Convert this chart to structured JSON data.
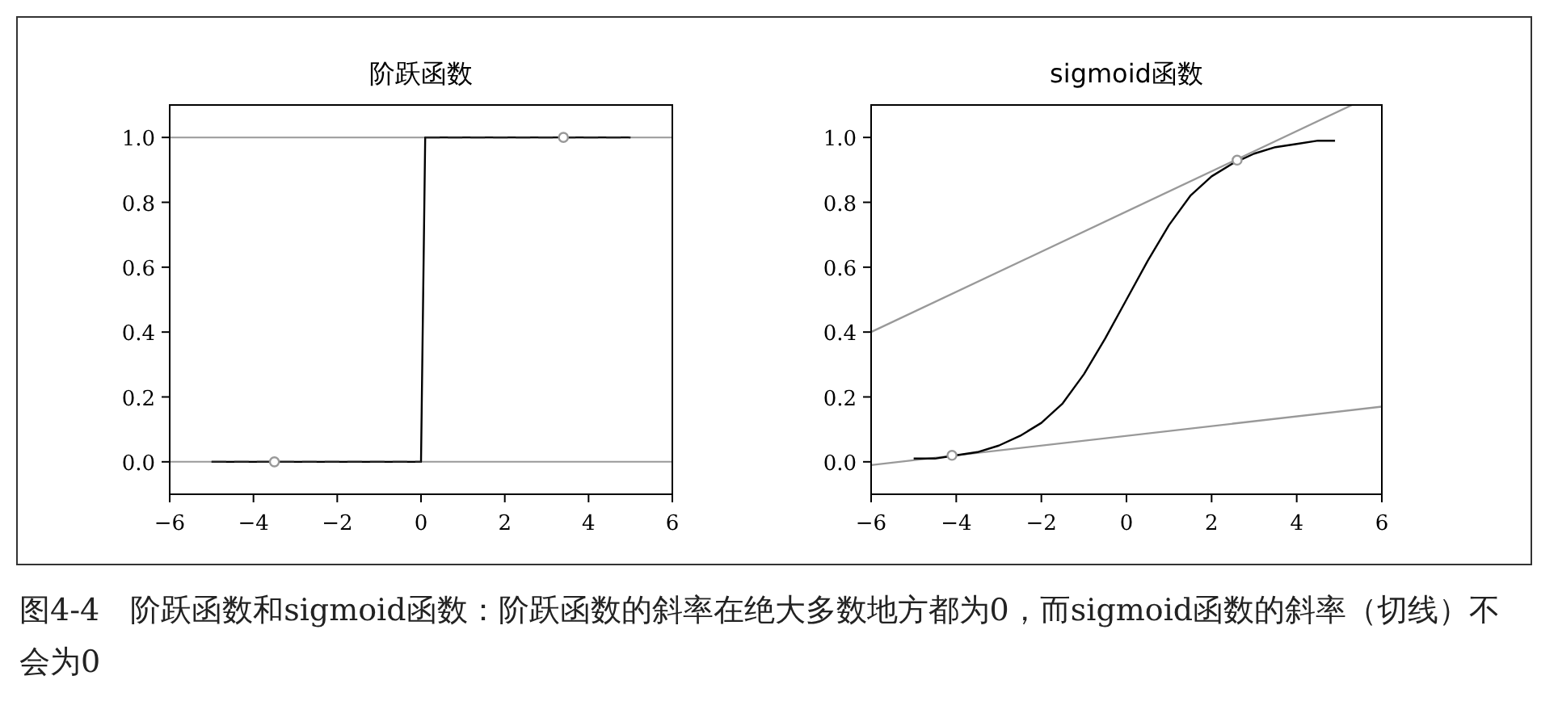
{
  "chart_data": [
    {
      "type": "line",
      "title": "阶跃函数",
      "xlim": [
        -6,
        6
      ],
      "ylim": [
        -0.1,
        1.1
      ],
      "xticks": [
        {
          "value": -6,
          "label": "−6"
        },
        {
          "value": -4,
          "label": "−4"
        },
        {
          "value": -2,
          "label": "−2"
        },
        0,
        2,
        4,
        6
      ],
      "yticks": [
        {
          "value": 0,
          "label": "0.0"
        },
        {
          "value": 0.2,
          "label": "0.2"
        },
        {
          "value": 0.4,
          "label": "0.4"
        },
        {
          "value": 0.6,
          "label": "0.6"
        },
        {
          "value": 0.8,
          "label": "0.8"
        },
        {
          "value": 1,
          "label": "1.0"
        }
      ],
      "grid": false,
      "ref_lines": [
        {
          "axis": "y",
          "value": 0,
          "color": "#999999"
        },
        {
          "axis": "y",
          "value": 1,
          "color": "#999999"
        }
      ],
      "series": [
        {
          "type": "line",
          "color": "#000000",
          "x": [
            -5,
            0,
            0.1,
            5
          ],
          "values": [
            0,
            0,
            1,
            1
          ],
          "line_style": "solid"
        },
        {
          "type": "line",
          "color": "#222222",
          "x": [
            -5,
            0
          ],
          "values": [
            0,
            0
          ],
          "line_style": "dashed"
        },
        {
          "type": "line",
          "color": "#222222",
          "x": [
            0.1,
            5
          ],
          "values": [
            1,
            1
          ],
          "line_style": "dashed"
        },
        {
          "type": "scatter",
          "color": "#999999",
          "x": [
            -3.5,
            3.4
          ],
          "values": [
            0,
            1
          ],
          "marker": "circle"
        }
      ],
      "annotations": [
        "图4-4　阶跃函数和sigmoid函数：阶跃函数的斜率在绝大多数地方都为0，而sigmoid函数的斜率（切线）不会为0"
      ]
    },
    {
      "type": "line",
      "title": "sigmoid函数",
      "xlim": [
        -6,
        6
      ],
      "ylim": [
        -0.1,
        1.1
      ],
      "xticks": [
        {
          "value": -6,
          "label": "−6"
        },
        {
          "value": -4,
          "label": "−4"
        },
        {
          "value": -2,
          "label": "−2"
        },
        0,
        2,
        4,
        6
      ],
      "yticks": [
        {
          "value": 0,
          "label": "0.0"
        },
        {
          "value": 0.2,
          "label": "0.2"
        },
        {
          "value": 0.4,
          "label": "0.4"
        },
        {
          "value": 0.6,
          "label": "0.6"
        },
        {
          "value": 0.8,
          "label": "0.8"
        },
        {
          "value": 1,
          "label": "1.0"
        }
      ],
      "grid": false,
      "series": [
        {
          "type": "line",
          "color": "#999999",
          "x": [
            -6,
            5.3
          ],
          "values": [
            0.4,
            1.1
          ],
          "line_style": "solid"
        },
        {
          "type": "line",
          "color": "#999999",
          "x": [
            -6,
            6
          ],
          "values": [
            -0.01,
            0.17
          ],
          "line_style": "solid"
        },
        {
          "type": "line",
          "color": "#000000",
          "line_style": "solid",
          "x": [
            -5,
            -4.5,
            -4,
            -3.5,
            -3,
            -2.5,
            -2,
            -1.5,
            -1,
            -0.5,
            0,
            0.5,
            1,
            1.5,
            2,
            2.5,
            3,
            3.5,
            4,
            4.5,
            4.9
          ],
          "values": [
            0.01,
            0.01,
            0.02,
            0.03,
            0.05,
            0.08,
            0.12,
            0.18,
            0.27,
            0.38,
            0.5,
            0.62,
            0.73,
            0.82,
            0.88,
            0.92,
            0.95,
            0.97,
            0.98,
            0.99,
            0.99
          ]
        },
        {
          "type": "scatter",
          "color": "#999999",
          "x": [
            -4.1,
            2.6
          ],
          "values": [
            0.02,
            0.93
          ],
          "marker": "circle"
        }
      ]
    }
  ]
}
